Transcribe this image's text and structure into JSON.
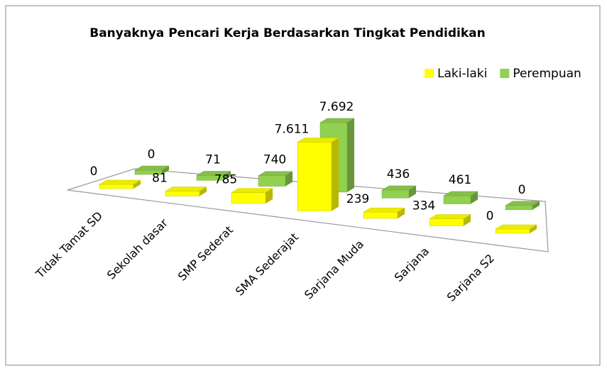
{
  "chart_data": {
    "type": "bar3d",
    "title": "Banyaknya Pencari Kerja Berdasarkan Tingkat Pendidikan",
    "categories": [
      "Tidak Tamat SD",
      "Sekolah dasar",
      "SMP Sederat",
      "SMA Sederajat",
      "Sarjana Muda",
      "Sarjana",
      "Sarjana S2"
    ],
    "series": [
      {
        "name": "Laki-laki",
        "color": "#ffff00",
        "values": [
          0,
          81,
          785,
          7611,
          239,
          334,
          0
        ],
        "value_labels": [
          "0",
          "81",
          "785",
          "7.611",
          "239",
          "334",
          "0"
        ]
      },
      {
        "name": "Perempuan",
        "color": "#92d050",
        "values": [
          0,
          71,
          740,
          7692,
          436,
          461,
          0
        ],
        "value_labels": [
          "0",
          "71",
          "740",
          "7.692",
          "436",
          "461",
          "0"
        ]
      }
    ],
    "legend": "top-right"
  }
}
